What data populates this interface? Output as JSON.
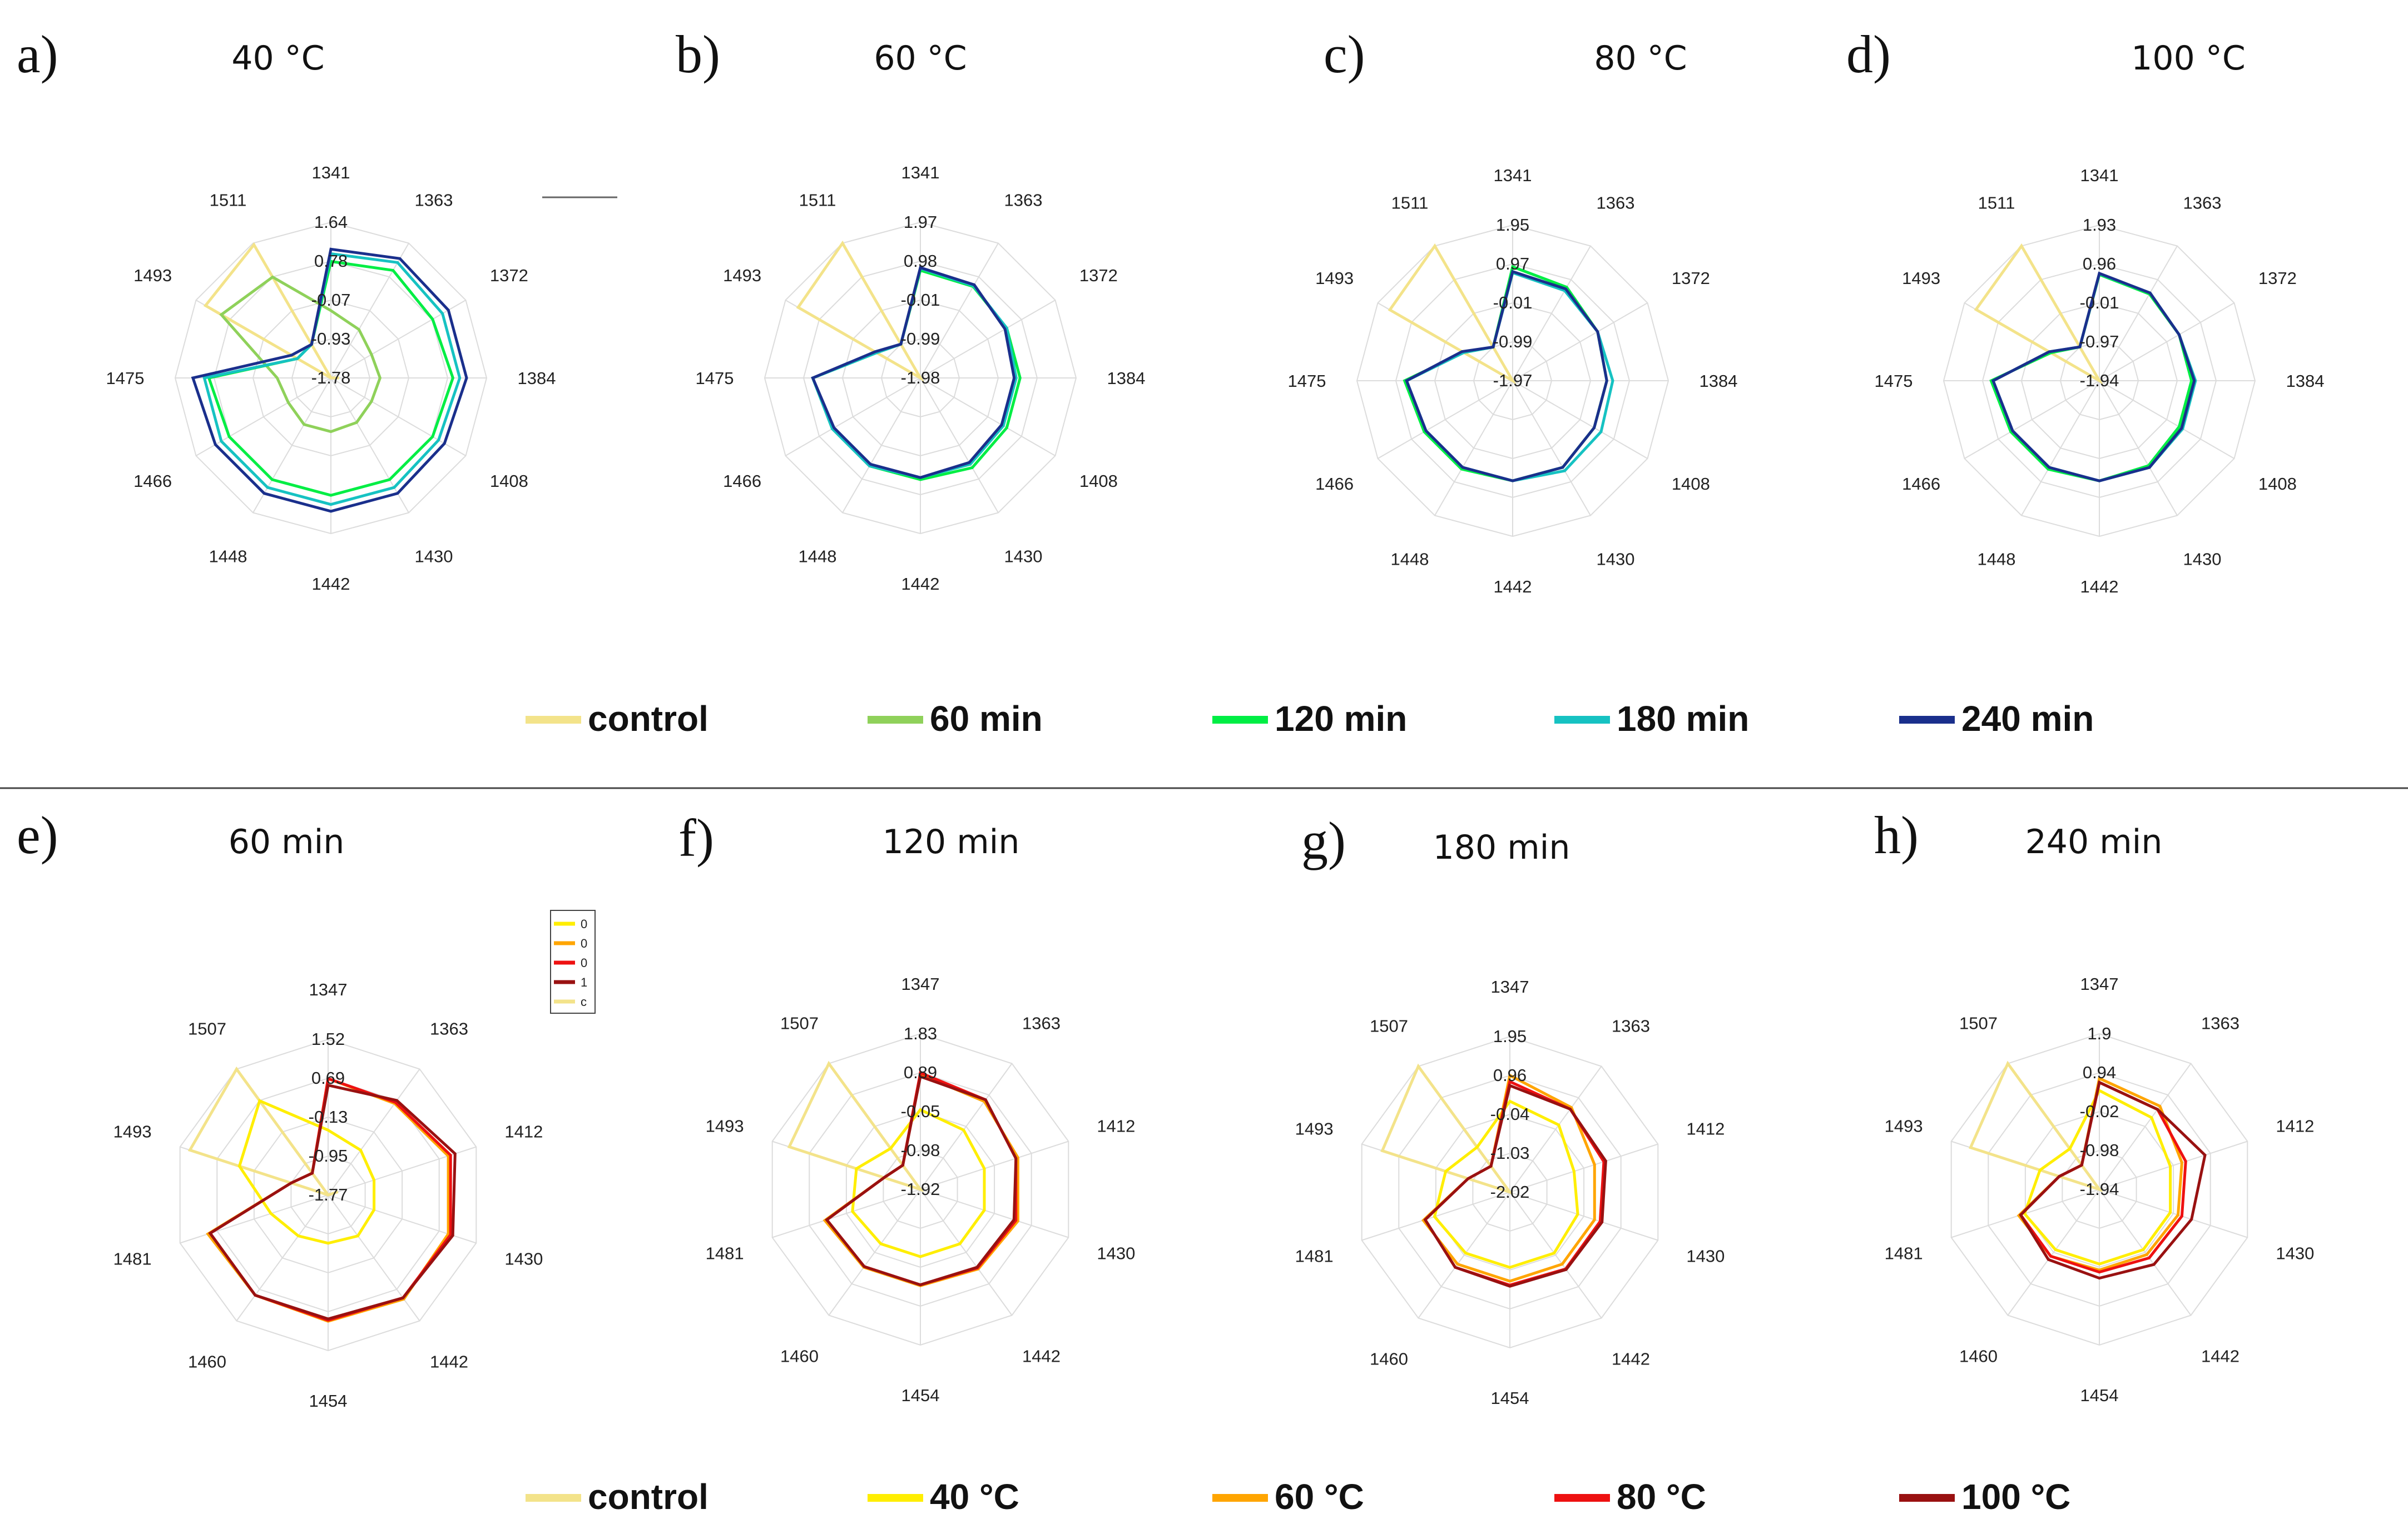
{
  "colors": {
    "control": "#f3e38a",
    "60 min": "#8fd15a",
    "120 min": "#00ee44",
    "180 min": "#16c2c2",
    "240 min": "#1a2f8c",
    "40 °C": "#ffee00",
    "60 °C": "#ffa500",
    "80 °C": "#ee1111",
    "100 °C": "#991111",
    "grid": "#dcdcdc"
  },
  "legends": {
    "top": [
      "control",
      "60 min",
      "120 min",
      "180 min",
      "240 min"
    ],
    "bottom": [
      "control",
      "40 °C",
      "60 °C",
      "80 °C",
      "100 °C"
    ]
  },
  "mini_legend": {
    "labels": [
      "0",
      "0",
      "0",
      "1",
      "c"
    ],
    "series": [
      "40 °C",
      "60 °C",
      "80 °C",
      "100 °C",
      "control"
    ]
  },
  "chart_data": [
    {
      "type": "radar",
      "letter": "a)",
      "title": "40 °C",
      "axes": [
        "1341",
        "1363",
        "1372",
        "1384",
        "1408",
        "1430",
        "1442",
        "1448",
        "1466",
        "1475",
        "1493",
        "1511"
      ],
      "ring_labels": [
        "1.64",
        "0.78",
        "-0.07",
        "-0.93",
        "-1.78"
      ],
      "series": [
        {
          "name": "control",
          "values": [
            -1.78,
            -1.78,
            -1.78,
            -1.6,
            -1.78,
            -1.78,
            -1.78,
            -1.78,
            -1.78,
            -1.78,
            1.4,
            1.6
          ]
        },
        {
          "name": "60 min",
          "values": [
            -0.3,
            -0.55,
            -0.75,
            -0.7,
            -0.75,
            -0.65,
            -0.6,
            -0.6,
            -0.7,
            -0.6,
            1.0,
            0.78
          ]
        },
        {
          "name": "120 min",
          "values": [
            0.78,
            0.95,
            0.8,
            0.9,
            0.8,
            0.8,
            0.8,
            0.8,
            0.8,
            0.9,
            -0.93,
            -0.93
          ]
        },
        {
          "name": "180 min",
          "values": [
            0.95,
            1.15,
            1.05,
            1.05,
            0.95,
            1.0,
            1.0,
            1.0,
            1.0,
            1.0,
            -0.93,
            -0.93
          ]
        },
        {
          "name": "240 min",
          "values": [
            1.05,
            1.25,
            1.2,
            1.2,
            1.1,
            1.15,
            1.15,
            1.15,
            1.15,
            1.25,
            -0.78,
            -0.93
          ]
        }
      ]
    },
    {
      "type": "radar",
      "letter": "b)",
      "title": "60 °C",
      "axes": [
        "1341",
        "1363",
        "1372",
        "1384",
        "1408",
        "1430",
        "1442",
        "1448",
        "1466",
        "1475",
        "1493",
        "1511"
      ],
      "ring_labels": [
        "1.97",
        "0.98",
        "-0.01",
        "-0.99",
        "-1.98"
      ],
      "series": [
        {
          "name": "control",
          "values": [
            -1.98,
            -1.98,
            -1.98,
            -1.98,
            -1.98,
            -1.98,
            -1.98,
            -1.98,
            -1.98,
            -1.98,
            1.6,
            1.97
          ]
        },
        {
          "name": "120 min",
          "values": [
            0.75,
            0.7,
            0.55,
            0.55,
            0.55,
            0.65,
            0.6,
            0.6,
            0.6,
            0.75,
            -0.7,
            -0.99
          ]
        },
        {
          "name": "180 min",
          "values": [
            0.8,
            0.72,
            0.55,
            0.45,
            0.45,
            0.55,
            0.55,
            0.6,
            0.6,
            0.75,
            -0.7,
            -0.99
          ]
        },
        {
          "name": "240 min",
          "values": [
            0.82,
            0.75,
            0.5,
            0.4,
            0.4,
            0.5,
            0.55,
            0.55,
            0.55,
            0.75,
            -0.65,
            -0.99
          ]
        }
      ]
    },
    {
      "type": "radar",
      "letter": "c)",
      "title": "80 °C",
      "axes": [
        "1341",
        "1363",
        "1372",
        "1384",
        "1408",
        "1430",
        "1442",
        "1448",
        "1466",
        "1475",
        "1493",
        "1511"
      ],
      "ring_labels": [
        "1.95",
        "0.97",
        "-0.01",
        "-0.99",
        "-1.97"
      ],
      "series": [
        {
          "name": "control",
          "values": [
            -1.97,
            -1.97,
            -1.97,
            -1.97,
            -1.97,
            -1.97,
            -1.97,
            -1.97,
            -1.97,
            -1.97,
            1.6,
            1.95
          ]
        },
        {
          "name": "120 min",
          "values": [
            0.9,
            0.75,
            0.5,
            0.4,
            0.4,
            0.55,
            0.55,
            0.6,
            0.6,
            0.75,
            -0.55,
            -0.99
          ]
        },
        {
          "name": "180 min",
          "values": [
            0.75,
            0.65,
            0.5,
            0.55,
            0.6,
            0.65,
            0.55,
            0.55,
            0.55,
            0.7,
            -0.55,
            -0.99
          ]
        },
        {
          "name": "240 min",
          "values": [
            0.78,
            0.7,
            0.5,
            0.4,
            0.4,
            0.55,
            0.55,
            0.55,
            0.55,
            0.7,
            -0.5,
            -0.99
          ]
        }
      ]
    },
    {
      "type": "radar",
      "letter": "d)",
      "title": "100 °C",
      "axes": [
        "1341",
        "1363",
        "1372",
        "1384",
        "1408",
        "1430",
        "1442",
        "1448",
        "1466",
        "1475",
        "1493",
        "1511"
      ],
      "ring_labels": [
        "1.93",
        "0.96",
        "-0.01",
        "-0.97",
        "-1.94"
      ],
      "series": [
        {
          "name": "control",
          "values": [
            -1.94,
            -1.94,
            -1.94,
            -1.94,
            -1.94,
            -1.94,
            -1.94,
            -1.94,
            -1.94,
            -1.94,
            1.6,
            1.93
          ]
        },
        {
          "name": "120 min",
          "values": [
            0.7,
            0.55,
            0.35,
            0.35,
            0.35,
            0.5,
            0.55,
            0.6,
            0.6,
            0.75,
            -0.55,
            -0.97
          ]
        },
        {
          "name": "180 min",
          "values": [
            0.72,
            0.58,
            0.35,
            0.45,
            0.45,
            0.55,
            0.55,
            0.55,
            0.55,
            0.7,
            -0.5,
            -0.97
          ]
        },
        {
          "name": "240 min",
          "values": [
            0.73,
            0.58,
            0.35,
            0.42,
            0.42,
            0.55,
            0.55,
            0.55,
            0.55,
            0.7,
            -0.5,
            -0.97
          ]
        }
      ]
    },
    {
      "type": "radar",
      "letter": "e)",
      "title": "60 min",
      "axes": [
        "1347",
        "1363",
        "1412",
        "1430",
        "1442",
        "1454",
        "1460",
        "1481",
        "1493",
        "1507"
      ],
      "ring_labels": [
        "1.52",
        "0.69",
        "-0.13",
        "-0.95",
        "-1.77"
      ],
      "series": [
        {
          "name": "control",
          "values": [
            -1.77,
            -1.77,
            -1.55,
            -1.77,
            -1.77,
            -1.77,
            -1.77,
            -1.77,
            1.3,
            1.52
          ]
        },
        {
          "name": "40 °C",
          "values": [
            -0.4,
            -0.6,
            -0.75,
            -0.75,
            -0.7,
            -0.75,
            -0.7,
            -0.5,
            0.2,
            0.69
          ]
        },
        {
          "name": "60 °C",
          "values": [
            0.69,
            0.62,
            0.9,
            0.9,
            0.95,
            0.9,
            0.85,
            0.9,
            -0.95,
            -1.2
          ]
        },
        {
          "name": "80 °C",
          "values": [
            0.69,
            0.65,
            0.95,
            0.95,
            0.92,
            0.88,
            0.85,
            0.85,
            -0.95,
            -1.2
          ]
        },
        {
          "name": "100 °C",
          "values": [
            0.55,
            0.7,
            1.05,
            1.0,
            0.92,
            0.85,
            0.85,
            0.85,
            -0.95,
            -1.2
          ]
        }
      ]
    },
    {
      "type": "radar",
      "letter": "f)",
      "title": "120 min",
      "axes": [
        "1347",
        "1363",
        "1412",
        "1430",
        "1442",
        "1454",
        "1460",
        "1481",
        "1493",
        "1507"
      ],
      "ring_labels": [
        "1.83",
        "0.89",
        "-0.05",
        "-0.98",
        "-1.92"
      ],
      "series": [
        {
          "name": "control",
          "values": [
            -1.92,
            -1.92,
            -1.92,
            -1.92,
            -1.92,
            -1.92,
            -1.92,
            -1.92,
            1.4,
            1.83
          ]
        },
        {
          "name": "40 °C",
          "values": [
            0.0,
            -0.15,
            -0.3,
            -0.3,
            -0.3,
            -0.3,
            -0.3,
            -0.2,
            -0.3,
            -0.7
          ]
        },
        {
          "name": "60 °C",
          "values": [
            0.85,
            0.7,
            0.55,
            0.55,
            0.45,
            0.4,
            0.4,
            0.5,
            -1.0,
            -1.2
          ]
        },
        {
          "name": "80 °C",
          "values": [
            0.89,
            0.75,
            0.5,
            0.5,
            0.42,
            0.38,
            0.38,
            0.45,
            -1.0,
            -1.2
          ]
        },
        {
          "name": "100 °C",
          "values": [
            0.8,
            0.75,
            0.5,
            0.45,
            0.4,
            0.38,
            0.38,
            0.45,
            -1.0,
            -1.2
          ]
        }
      ]
    },
    {
      "type": "radar",
      "letter": "g)",
      "title": "180 min",
      "axes": [
        "1347",
        "1363",
        "1412",
        "1430",
        "1442",
        "1454",
        "1460",
        "1481",
        "1493",
        "1507"
      ],
      "ring_labels": [
        "1.95",
        "0.96",
        "-0.04",
        "-1.03",
        "-2.02"
      ],
      "series": [
        {
          "name": "control",
          "values": [
            -2.02,
            -2.02,
            -2.02,
            -2.02,
            -2.02,
            -2.02,
            -2.02,
            -2.02,
            1.4,
            1.95
          ]
        },
        {
          "name": "40 °C",
          "values": [
            0.3,
            0.1,
            -0.3,
            -0.2,
            -0.1,
            -0.1,
            -0.1,
            0.0,
            -0.3,
            -0.6
          ]
        },
        {
          "name": "60 °C",
          "values": [
            0.96,
            0.65,
            0.25,
            0.25,
            0.25,
            0.25,
            0.25,
            0.3,
            -0.9,
            -1.2
          ]
        },
        {
          "name": "80 °C",
          "values": [
            0.8,
            0.6,
            0.5,
            0.4,
            0.4,
            0.35,
            0.35,
            0.25,
            -0.9,
            -1.2
          ]
        },
        {
          "name": "100 °C",
          "values": [
            0.7,
            0.6,
            0.55,
            0.45,
            0.42,
            0.38,
            0.35,
            0.25,
            -0.9,
            -1.2
          ]
        }
      ]
    },
    {
      "type": "radar",
      "letter": "h)",
      "title": "240 min",
      "axes": [
        "1347",
        "1363",
        "1412",
        "1430",
        "1442",
        "1454",
        "1460",
        "1481",
        "1493",
        "1507"
      ],
      "ring_labels": [
        "1.9",
        "0.94",
        "-0.02",
        "-0.98",
        "-1.94"
      ],
      "series": [
        {
          "name": "control",
          "values": [
            -1.94,
            -1.94,
            -1.94,
            -1.94,
            -1.94,
            -1.94,
            -1.94,
            -1.94,
            1.4,
            1.9
          ]
        },
        {
          "name": "40 °C",
          "values": [
            0.5,
            0.25,
            -0.1,
            -0.1,
            -0.1,
            -0.1,
            -0.1,
            0.0,
            -0.4,
            -0.7
          ]
        },
        {
          "name": "60 °C",
          "values": [
            0.8,
            0.6,
            0.2,
            0.1,
            0.05,
            0.05,
            0.1,
            0.15,
            -0.9,
            -1.2
          ]
        },
        {
          "name": "80 °C",
          "values": [
            0.7,
            0.5,
            0.3,
            0.2,
            0.15,
            0.1,
            0.1,
            0.1,
            -0.9,
            -1.2
          ]
        },
        {
          "name": "100 °C",
          "values": [
            0.7,
            0.5,
            0.8,
            0.45,
            0.35,
            0.25,
            0.2,
            0.1,
            -0.9,
            -1.2
          ]
        }
      ]
    }
  ]
}
